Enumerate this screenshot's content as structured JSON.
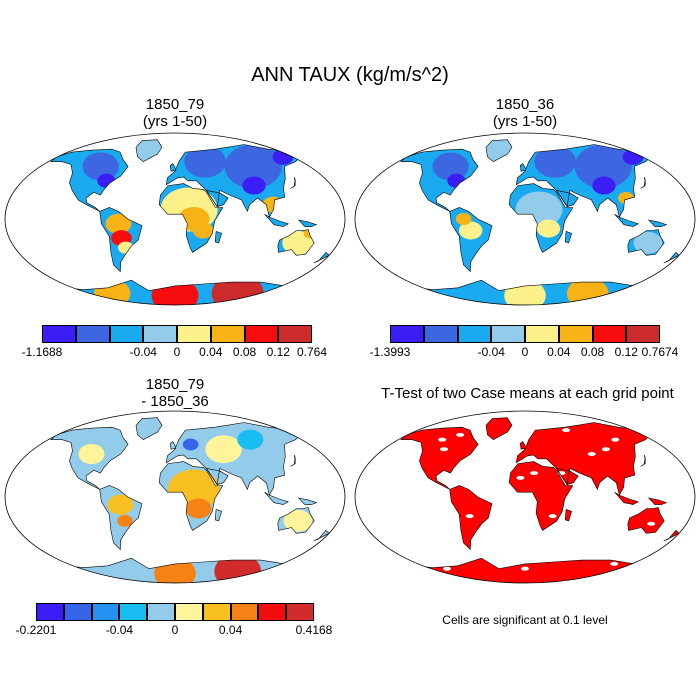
{
  "title": "ANN TAUX (kg/m/s^2)",
  "panels": [
    {
      "id": "p1",
      "line1": "1850_79",
      "line2": "(yrs 1-50)",
      "type": "field"
    },
    {
      "id": "p2",
      "line1": "1850_36",
      "line2": "(yrs 1-50)",
      "type": "field"
    },
    {
      "id": "p3",
      "line1": "1850_79",
      "line2": "- 1850_36",
      "type": "diff"
    },
    {
      "id": "p4",
      "line1": "T-Test of two Case means at each grid point",
      "line2": "",
      "type": "ttest"
    }
  ],
  "colorbars": [
    {
      "id": "cb1",
      "colors": [
        "#3a1ef5",
        "#3d67e0",
        "#19aaf0",
        "#93ccea",
        "#fbf08a",
        "#f7b316",
        "#f70d0d",
        "#cc2b2b"
      ],
      "labels": [
        "-1.1688",
        "-0.04",
        "0",
        "0.04",
        "0.08",
        "0.12",
        "0.764"
      ]
    },
    {
      "id": "cb2",
      "colors": [
        "#3a1ef5",
        "#3d67e0",
        "#19aaf0",
        "#93ccea",
        "#fbf08a",
        "#f7b316",
        "#f70d0d",
        "#cc2b2b"
      ],
      "labels": [
        "-1.3993",
        "-0.04",
        "0",
        "0.04",
        "0.08",
        "0.12",
        "0.7674"
      ]
    },
    {
      "id": "cb3",
      "colors": [
        "#3a1ef5",
        "#3566ea",
        "#2291ef",
        "#19bdf2",
        "#93ccea",
        "#fff49a",
        "#f7c020",
        "#f58215",
        "#f20d0d",
        "#d22b2b"
      ],
      "labels": [
        "-0.2201",
        "-0.04",
        "0",
        "0.04",
        "0.4168"
      ]
    }
  ],
  "significance_note": "Cells are significant at 0.1 level",
  "colors": {
    "significant": "#ff0000",
    "background": "#ffffff"
  }
}
